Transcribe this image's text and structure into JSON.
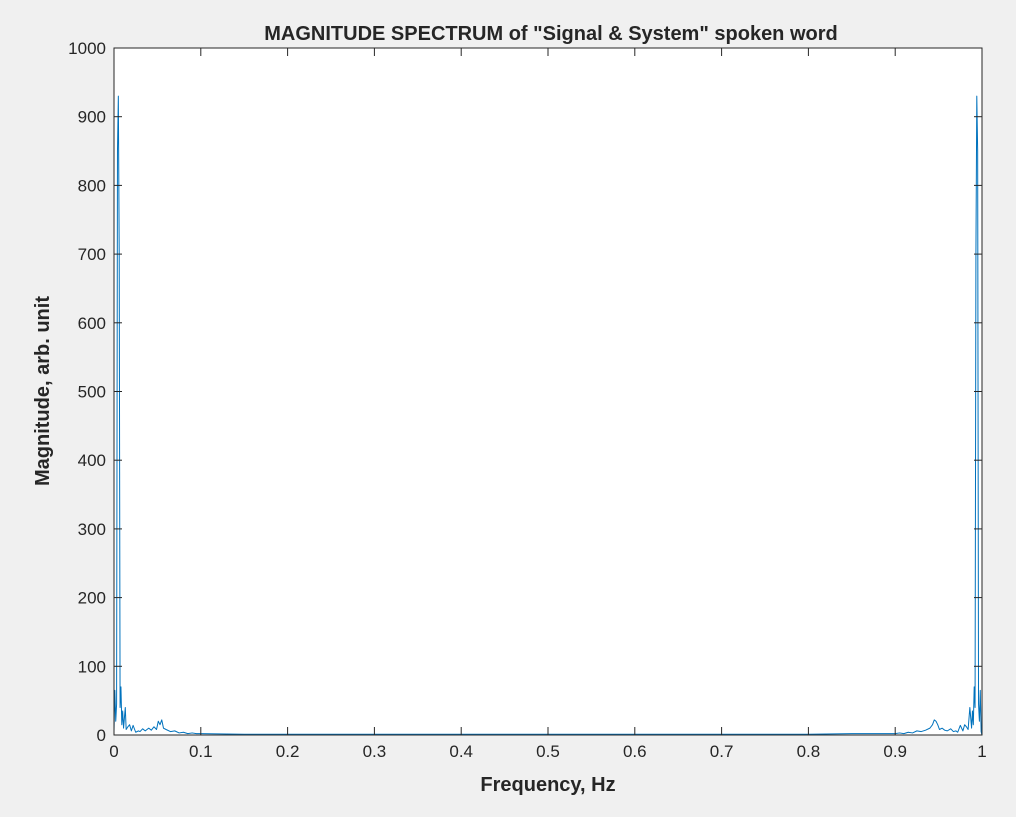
{
  "chart_data": {
    "type": "line",
    "title": "MAGNITUDE SPECTRUM of \"Signal & System\" spoken word",
    "xlabel": "Frequency, Hz",
    "ylabel": "Magnitude, arb. unit",
    "xlim": [
      0,
      1
    ],
    "ylim": [
      0,
      1000
    ],
    "xticks": [
      0,
      0.1,
      0.2,
      0.3,
      0.4,
      0.5,
      0.6,
      0.7,
      0.8,
      0.9,
      1
    ],
    "xtick_labels": [
      "0",
      "0.1",
      "0.2",
      "0.3",
      "0.4",
      "0.5",
      "0.6",
      "0.7",
      "0.8",
      "0.9",
      "1"
    ],
    "yticks": [
      0,
      100,
      200,
      300,
      400,
      500,
      600,
      700,
      800,
      900,
      1000
    ],
    "ytick_labels": [
      "0",
      "100",
      "200",
      "300",
      "400",
      "500",
      "600",
      "700",
      "800",
      "900",
      "1000"
    ],
    "grid": false,
    "line_color": "#0072bd",
    "series": [
      {
        "x": [
          0,
          0.001,
          0.002,
          0.003,
          0.004,
          0.005,
          0.006,
          0.007,
          0.008,
          0.009,
          0.01,
          0.011,
          0.012,
          0.013,
          0.014,
          0.016,
          0.018,
          0.02,
          0.022,
          0.025,
          0.028,
          0.03,
          0.033,
          0.036,
          0.04,
          0.043,
          0.046,
          0.049,
          0.051,
          0.053,
          0.055,
          0.057,
          0.06,
          0.065,
          0.07,
          0.075,
          0.08,
          0.085,
          0.09,
          0.095,
          0.1,
          0.15,
          0.2,
          0.25,
          0.3,
          0.35,
          0.4,
          0.45,
          0.5,
          0.55,
          0.6,
          0.65,
          0.7,
          0.75,
          0.8,
          0.85,
          0.9,
          0.905,
          0.91,
          0.915,
          0.92,
          0.925,
          0.93,
          0.935,
          0.94,
          0.943,
          0.945,
          0.947,
          0.949,
          0.951,
          0.954,
          0.957,
          0.96,
          0.964,
          0.967,
          0.97,
          0.972,
          0.975,
          0.978,
          0.98,
          0.982,
          0.984,
          0.986,
          0.987,
          0.988,
          0.989,
          0.99,
          0.991,
          0.992,
          0.993,
          0.994,
          0.995,
          0.996,
          0.997,
          0.998,
          0.999,
          1.0
        ],
        "y": [
          5,
          65,
          20,
          45,
          850,
          930,
          700,
          40,
          70,
          15,
          35,
          10,
          25,
          40,
          8,
          12,
          15,
          6,
          14,
          4,
          6,
          5,
          9,
          6,
          10,
          7,
          12,
          8,
          20,
          15,
          22,
          10,
          8,
          5,
          6,
          3,
          4,
          2,
          3,
          2,
          2,
          1,
          1,
          1,
          1,
          1,
          1,
          1,
          1,
          1,
          1,
          1,
          1,
          1,
          1,
          2,
          2,
          3,
          2,
          4,
          3,
          6,
          5,
          7,
          10,
          15,
          22,
          20,
          15,
          8,
          10,
          7,
          6,
          9,
          5,
          6,
          4,
          14,
          6,
          15,
          12,
          8,
          40,
          25,
          10,
          35,
          15,
          70,
          40,
          700,
          930,
          850,
          45,
          20,
          65,
          5,
          0
        ]
      }
    ]
  }
}
